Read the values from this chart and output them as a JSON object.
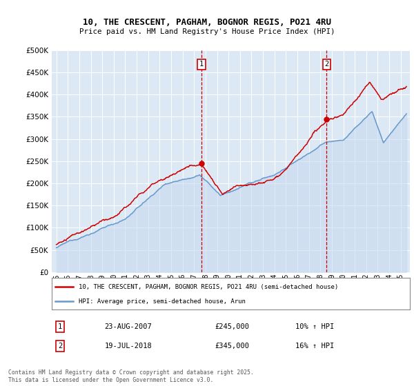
{
  "title": "10, THE CRESCENT, PAGHAM, BOGNOR REGIS, PO21 4RU",
  "subtitle": "Price paid vs. HM Land Registry's House Price Index (HPI)",
  "plot_bg_color": "#dce9f5",
  "legend_label_red": "10, THE CRESCENT, PAGHAM, BOGNOR REGIS, PO21 4RU (semi-detached house)",
  "legend_label_blue": "HPI: Average price, semi-detached house, Arun",
  "footnote1": "Contains HM Land Registry data © Crown copyright and database right 2025.",
  "footnote2": "This data is licensed under the Open Government Licence v3.0.",
  "marker1_label": "1",
  "marker1_date": "23-AUG-2007",
  "marker1_price": "£245,000",
  "marker1_hpi": "10% ↑ HPI",
  "marker1_x": 2007.64,
  "marker1_y": 245000,
  "marker2_label": "2",
  "marker2_date": "19-JUL-2018",
  "marker2_price": "£345,000",
  "marker2_hpi": "16% ↑ HPI",
  "marker2_x": 2018.54,
  "marker2_y": 345000,
  "ylim": [
    0,
    500000
  ],
  "yticks": [
    0,
    50000,
    100000,
    150000,
    200000,
    250000,
    300000,
    350000,
    400000,
    450000,
    500000
  ],
  "xlim_left": 1994.6,
  "xlim_right": 2025.8,
  "red_color": "#cc0000",
  "blue_color": "#6699cc",
  "blue_fill_color": "#c5d8ee",
  "xstart": 1995,
  "xend": 2025
}
